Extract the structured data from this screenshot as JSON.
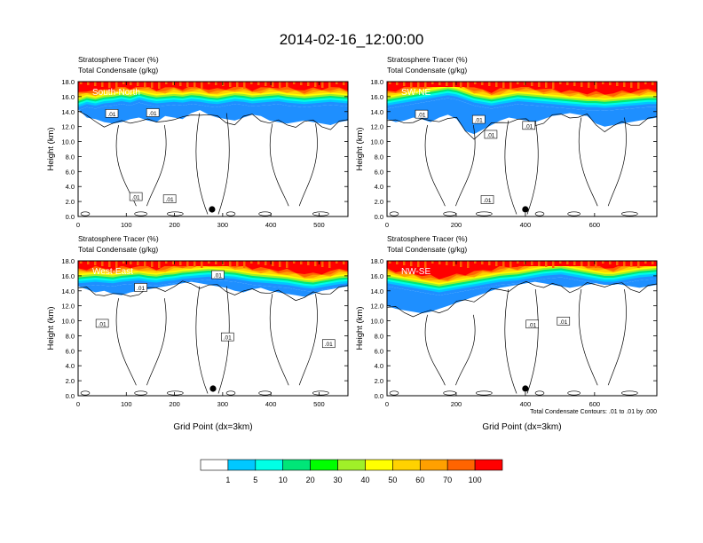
{
  "title": "2014-02-16_12:00:00",
  "colors": {
    "levels": [
      "#ffffff",
      "#1e8fff",
      "#00c8ff",
      "#00ffe6",
      "#00e678",
      "#00ff00",
      "#a0f028",
      "#ffff00",
      "#ffd200",
      "#ffa000",
      "#ff6400",
      "#ff0000"
    ],
    "contour": "#000000",
    "frame": "#000000"
  },
  "chart_data": [
    {
      "type": "heatmap",
      "panel_label": "South-North",
      "left_title_1": "Stratosphere Tracer   (%)",
      "left_title_2": "Total Condensate   (g/kg)",
      "ylabel": "Height (km)",
      "xlabel": "",
      "xlim": [
        0,
        560
      ],
      "ylim": [
        0,
        18
      ],
      "xticks": [
        0,
        100,
        200,
        300,
        400,
        500
      ],
      "yticks": [
        "0.0",
        "2.0",
        "4.0",
        "6.0",
        "8.0",
        "10.0",
        "12.0",
        "14.0",
        "16.0",
        "18.0"
      ],
      "contour_labels": [
        {
          "x": 70,
          "y": 13.7,
          "text": ".01"
        },
        {
          "x": 155,
          "y": 13.8,
          "text": ".01"
        },
        {
          "x": 120,
          "y": 2.6,
          "text": ".01"
        },
        {
          "x": 190,
          "y": 2.3,
          "text": ".01"
        }
      ],
      "marker_x": 278,
      "stratosphere_base_km": [
        14.8,
        15.2,
        15.0,
        15.3,
        15.4,
        15.6,
        15.4,
        15.8,
        15.5,
        15.3,
        15.4,
        15.5,
        15.4,
        15.6,
        15.5,
        15.3,
        15.2,
        15.4,
        15.6,
        15.5,
        15.3,
        15.4,
        15.5,
        15.6,
        15.4,
        15.3,
        15.2,
        15.3,
        15.4,
        15.5,
        15.4,
        15.3
      ],
      "condensate_top_km": [
        14.3,
        13.2,
        13.0,
        12.6,
        12.4,
        12.6,
        13.0,
        13.2,
        12.8,
        12.6,
        13.4,
        13.2,
        13.0,
        13.8,
        14.2,
        13.6,
        13.2,
        13.0,
        12.8,
        13.2,
        13.6,
        13.4,
        12.8,
        12.6,
        12.4,
        12.6,
        12.8,
        12.6,
        12.4,
        12.2,
        12.6,
        12.8
      ]
    },
    {
      "type": "heatmap",
      "panel_label": "SW-NE",
      "left_title_1": "Stratosphere Tracer   (%)",
      "left_title_2": "Total Condensate   (g/kg)",
      "ylabel": "Height (km)",
      "xlabel": "",
      "xlim": [
        0,
        780
      ],
      "ylim": [
        0,
        18
      ],
      "xticks": [
        0,
        200,
        400,
        600
      ],
      "yticks": [
        "0.0",
        "2.0",
        "4.0",
        "6.0",
        "8.0",
        "10.0",
        "12.0",
        "14.0",
        "16.0",
        "18.0"
      ],
      "contour_labels": [
        {
          "x": 100,
          "y": 13.6,
          "text": ".01"
        },
        {
          "x": 265,
          "y": 12.9,
          "text": ".01"
        },
        {
          "x": 300,
          "y": 10.9,
          "text": ".01"
        },
        {
          "x": 410,
          "y": 12.1,
          "text": ".01"
        },
        {
          "x": 290,
          "y": 2.2,
          "text": ".01"
        }
      ],
      "marker_x": 400,
      "stratosphere_base_km": [
        15.0,
        15.2,
        15.4,
        15.6,
        15.8,
        16.0,
        16.2,
        16.4,
        16.2,
        15.8,
        15.4,
        15.2,
        15.0,
        15.2,
        15.4,
        15.6,
        15.5,
        15.4,
        15.3,
        15.2,
        15.1,
        15.0,
        14.9,
        14.8,
        14.8,
        14.7,
        14.8,
        14.9,
        15.0,
        15.1,
        15.2,
        15.2
      ],
      "condensate_top_km": [
        13.0,
        12.6,
        12.8,
        13.2,
        13.0,
        12.6,
        13.2,
        13.6,
        13.0,
        11.4,
        11.0,
        11.6,
        12.2,
        12.8,
        13.2,
        13.0,
        12.8,
        12.6,
        13.0,
        13.4,
        13.6,
        13.8,
        13.6,
        13.4,
        12.4,
        12.0,
        12.2,
        12.4,
        12.6,
        12.8,
        13.0,
        13.2
      ]
    },
    {
      "type": "heatmap",
      "panel_label": "West-East",
      "left_title_1": "Stratosphere Tracer   (%)",
      "left_title_2": "Total Condensate   (g/kg)",
      "ylabel": "Height (km)",
      "xlabel": "Grid Point (dx=3km)",
      "xlim": [
        0,
        560
      ],
      "ylim": [
        0,
        18
      ],
      "xticks": [
        0,
        100,
        200,
        300,
        400,
        500
      ],
      "yticks": [
        "0.0",
        "2.0",
        "4.0",
        "6.0",
        "8.0",
        "10.0",
        "12.0",
        "14.0",
        "16.0",
        "18.0"
      ],
      "contour_labels": [
        {
          "x": 290,
          "y": 16.1,
          "text": ".01"
        },
        {
          "x": 130,
          "y": 14.4,
          "text": ".01"
        },
        {
          "x": 50,
          "y": 9.6,
          "text": ".01"
        },
        {
          "x": 310,
          "y": 7.8,
          "text": ".01"
        },
        {
          "x": 520,
          "y": 6.9,
          "text": ".01"
        }
      ],
      "marker_x": 280,
      "stratosphere_base_km": [
        15.2,
        15.3,
        15.4,
        15.3,
        15.2,
        15.4,
        15.5,
        15.6,
        15.4,
        15.3,
        15.5,
        15.6,
        15.8,
        15.9,
        16.0,
        16.1,
        16.0,
        15.9,
        15.8,
        15.6,
        15.4,
        15.3,
        15.2,
        15.1,
        15.0,
        14.8,
        14.6,
        14.5,
        14.7,
        14.9,
        15.1,
        15.2
      ],
      "condensate_top_km": [
        14.6,
        14.2,
        13.8,
        14.0,
        13.6,
        13.4,
        13.8,
        14.0,
        14.2,
        14.4,
        14.6,
        14.8,
        15.0,
        15.2,
        15.0,
        14.8,
        14.6,
        14.4,
        14.0,
        13.8,
        14.2,
        14.4,
        14.0,
        13.8,
        13.6,
        13.4,
        13.2,
        13.6,
        14.0,
        14.2,
        14.4,
        14.6
      ]
    },
    {
      "type": "heatmap",
      "panel_label": "NW-SE",
      "left_title_1": "Stratosphere Tracer   (%)",
      "left_title_2": "Total Condensate   (g/kg)",
      "ylabel": "Height (km)",
      "xlabel": "Grid Point (dx=3km)",
      "note": "Total Condensate Contours: .01 to .01 by .000",
      "xlim": [
        0,
        780
      ],
      "ylim": [
        0,
        18
      ],
      "xticks": [
        0,
        200,
        400,
        600
      ],
      "yticks": [
        "0.0",
        "2.0",
        "4.0",
        "6.0",
        "8.0",
        "10.0",
        "12.0",
        "14.0",
        "16.0",
        "18.0"
      ],
      "contour_labels": [
        {
          "x": 420,
          "y": 9.5,
          "text": ".01"
        },
        {
          "x": 510,
          "y": 9.9,
          "text": ".01"
        }
      ],
      "marker_x": 400,
      "stratosphere_base_km": [
        15.2,
        15.0,
        14.8,
        14.6,
        14.4,
        14.2,
        14.0,
        14.2,
        14.4,
        14.6,
        14.8,
        15.0,
        15.2,
        15.4,
        15.5,
        15.6,
        15.8,
        16.0,
        16.2,
        16.3,
        16.4,
        16.2,
        16.0,
        15.8,
        15.6,
        15.4,
        15.4,
        15.6,
        15.8,
        16.0,
        16.1,
        16.2
      ],
      "condensate_top_km": [
        12.0,
        11.6,
        11.4,
        11.2,
        11.0,
        11.2,
        11.6,
        12.0,
        12.4,
        12.8,
        13.2,
        13.6,
        14.0,
        14.4,
        14.6,
        14.8,
        15.0,
        15.2,
        15.0,
        14.8,
        14.6,
        14.4,
        14.6,
        14.8,
        15.0,
        15.2,
        15.0,
        14.8,
        14.6,
        14.4,
        14.6,
        14.8
      ]
    }
  ],
  "colorbar": {
    "labels": [
      "1",
      "5",
      "10",
      "20",
      "30",
      "40",
      "50",
      "60",
      "70",
      "100"
    ]
  }
}
